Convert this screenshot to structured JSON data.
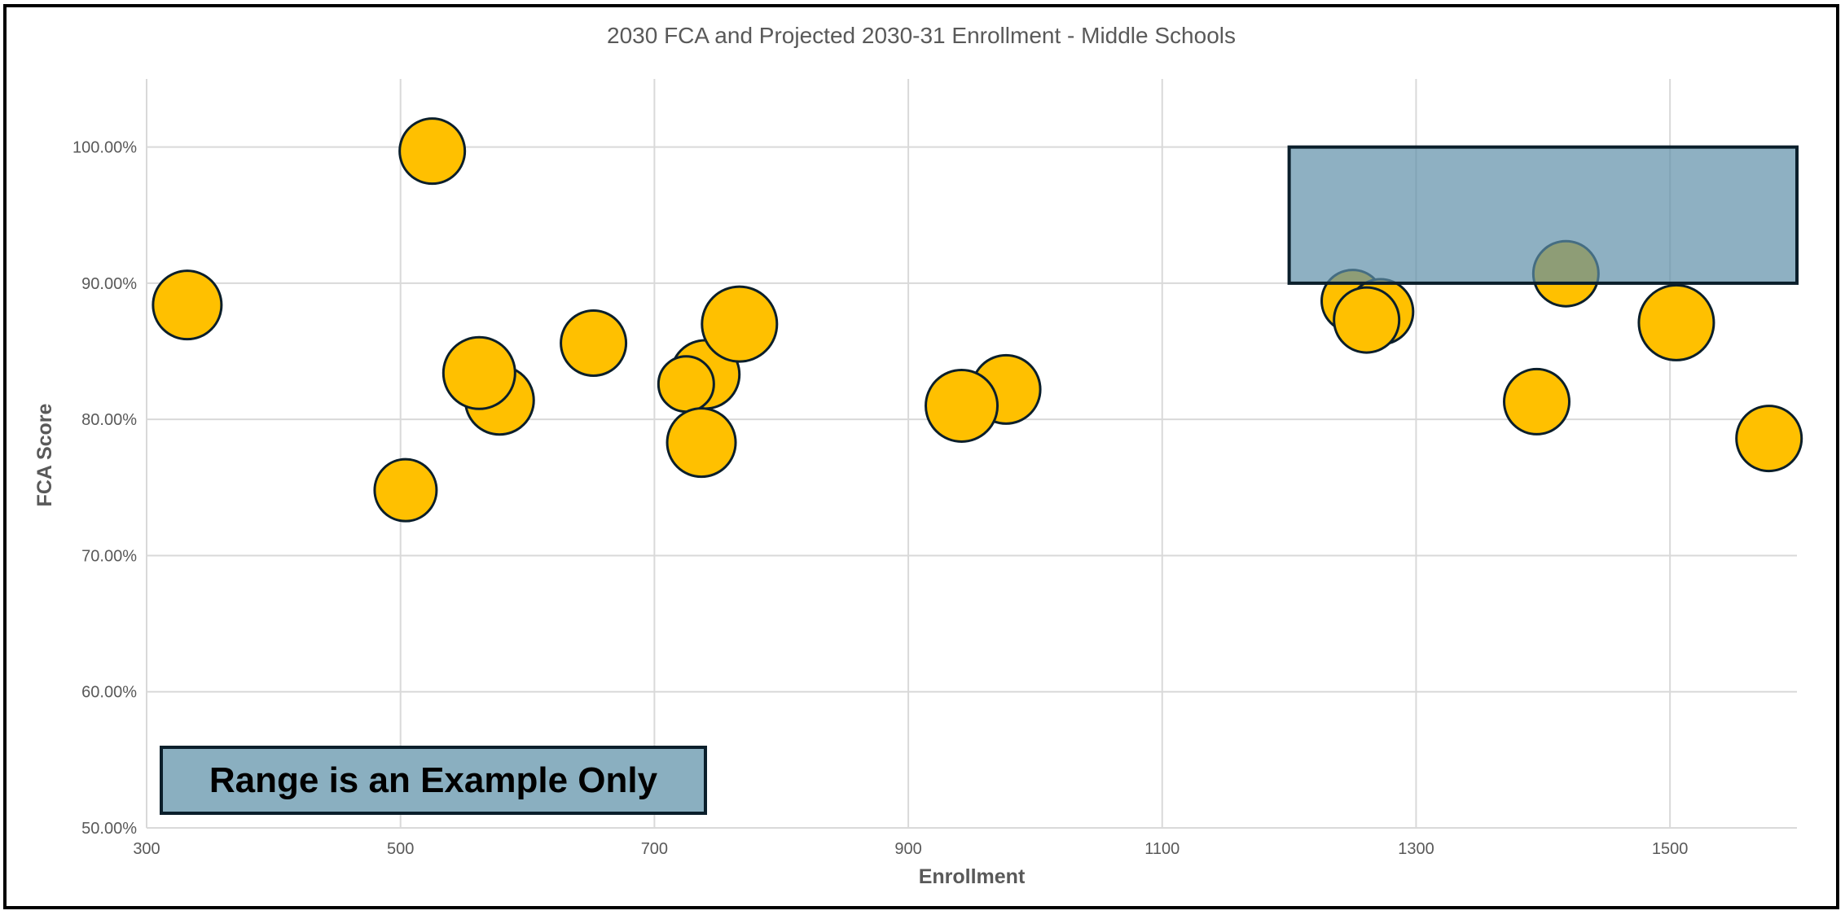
{
  "chart_data": {
    "type": "scatter",
    "subtype": "bubble",
    "title": "2030 FCA and Projected 2030-31 Enrollment - Middle Schools",
    "xlabel": "Enrollment",
    "ylabel": "FCA Score",
    "xlim": [
      300,
      1600
    ],
    "ylim": [
      0.5,
      1.05
    ],
    "x_ticks": [
      300,
      500,
      700,
      900,
      1100,
      1300,
      1500
    ],
    "y_ticks": [
      0.5,
      0.6,
      0.7,
      0.8,
      0.9,
      1.0
    ],
    "x_tick_labels": [
      "300",
      "500",
      "700",
      "900",
      "1100",
      "1300",
      "1500"
    ],
    "y_tick_labels": [
      "50.00%",
      "60.00%",
      "70.00%",
      "80.00%",
      "90.00%",
      "100.00%"
    ],
    "grid": true,
    "bubble_color": "#FFC000",
    "bubble_border_color": "#0B1F2B",
    "points": [
      {
        "x": 332,
        "y": 0.884,
        "size": 1.05
      },
      {
        "x": 525,
        "y": 0.997,
        "size": 1.0
      },
      {
        "x": 504,
        "y": 0.748,
        "size": 0.95
      },
      {
        "x": 578,
        "y": 0.814,
        "size": 1.05
      },
      {
        "x": 562,
        "y": 0.834,
        "size": 1.1
      },
      {
        "x": 652,
        "y": 0.856,
        "size": 1.0
      },
      {
        "x": 740,
        "y": 0.833,
        "size": 1.05
      },
      {
        "x": 725,
        "y": 0.826,
        "size": 0.85
      },
      {
        "x": 767,
        "y": 0.87,
        "size": 1.15
      },
      {
        "x": 737,
        "y": 0.783,
        "size": 1.05
      },
      {
        "x": 977,
        "y": 0.822,
        "size": 1.05
      },
      {
        "x": 942,
        "y": 0.81,
        "size": 1.1
      },
      {
        "x": 1250,
        "y": 0.887,
        "size": 0.95
      },
      {
        "x": 1272,
        "y": 0.879,
        "size": 1.0
      },
      {
        "x": 1261,
        "y": 0.873,
        "size": 1.0
      },
      {
        "x": 1395,
        "y": 0.813,
        "size": 1.0
      },
      {
        "x": 1418,
        "y": 0.907,
        "size": 1.0
      },
      {
        "x": 1505,
        "y": 0.871,
        "size": 1.15
      },
      {
        "x": 1578,
        "y": 0.786,
        "size": 1.0
      }
    ],
    "highlight_range": {
      "x": [
        1200,
        1600
      ],
      "y": [
        0.9,
        1.0
      ],
      "fill": "#5E8FA8",
      "fill_opacity": 0.7,
      "border_color": "#0B1F2B"
    },
    "annotation": {
      "text": "Range is an Example Only",
      "fill": "#8AAFC0",
      "border_color": "#0B1F2B"
    }
  }
}
